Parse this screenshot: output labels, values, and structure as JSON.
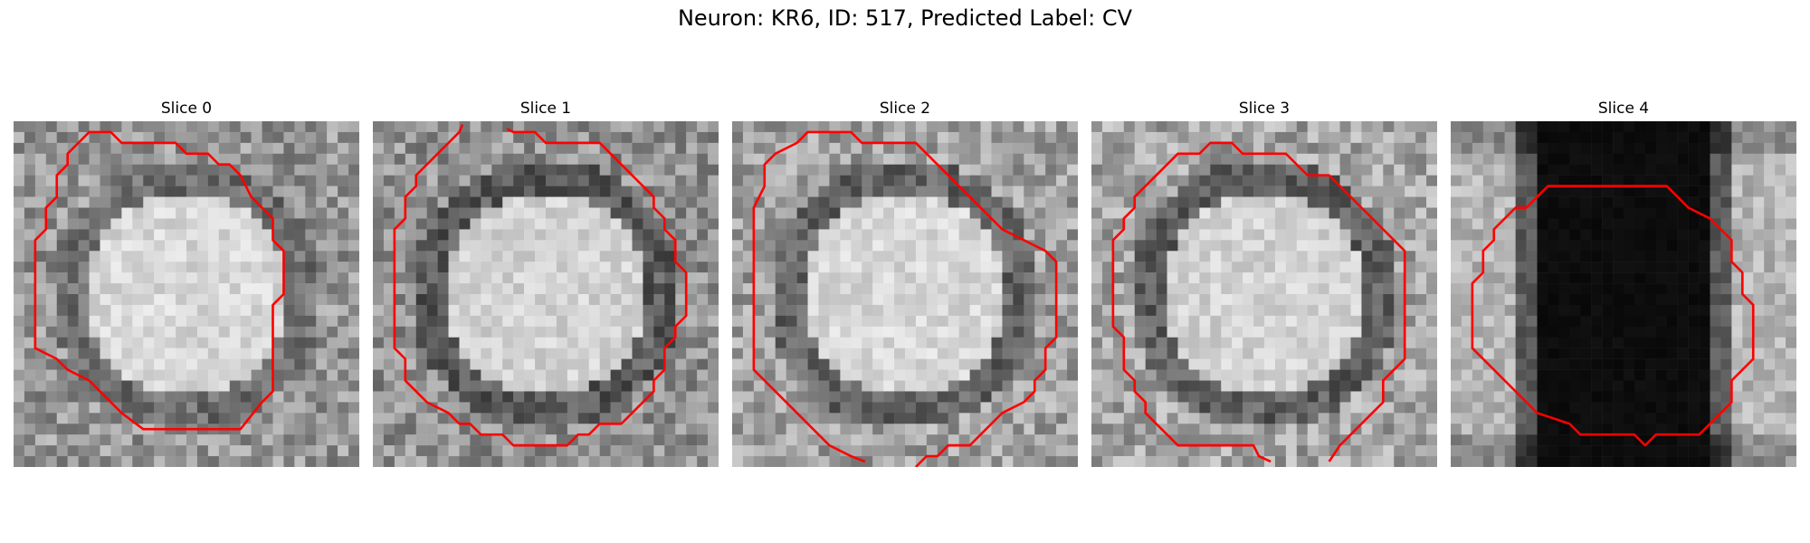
{
  "figure": {
    "title": "Neuron: KR6, ID: 517, Predicted Label: CV",
    "outline_color": "#ff0000"
  },
  "panels": [
    {
      "title": "Slice 0",
      "texture_seed": 11,
      "nucleus_brightness": 215,
      "ring_brightness": 110,
      "background_brightness": 150
    },
    {
      "title": "Slice 1",
      "texture_seed": 23,
      "nucleus_brightness": 210,
      "ring_brightness": 90,
      "background_brightness": 145
    },
    {
      "title": "Slice 2",
      "texture_seed": 37,
      "nucleus_brightness": 215,
      "ring_brightness": 100,
      "background_brightness": 160
    },
    {
      "title": "Slice 3",
      "texture_seed": 41,
      "nucleus_brightness": 210,
      "ring_brightness": 95,
      "background_brightness": 165
    },
    {
      "title": "Slice 4",
      "texture_seed": 53,
      "nucleus_brightness": 8,
      "ring_brightness": 8,
      "background_brightness": 180
    }
  ]
}
